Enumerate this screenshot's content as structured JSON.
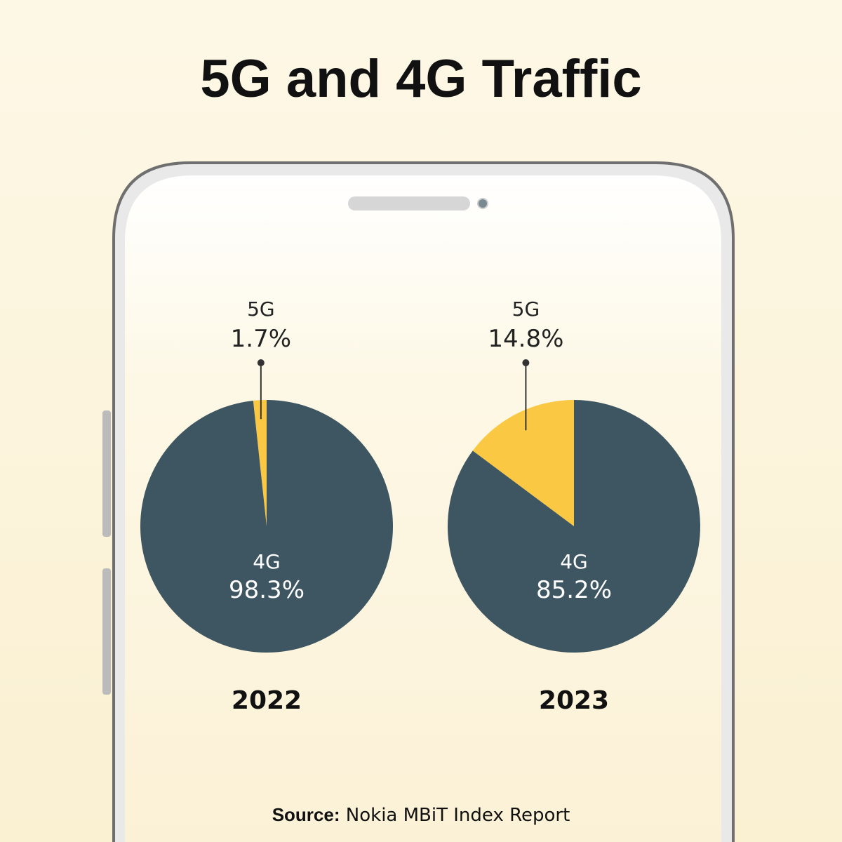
{
  "title": "5G and 4G Traffic",
  "source": {
    "label": "Source:",
    "text": "Nokia MBiT Index Report"
  },
  "chart_data": [
    {
      "type": "pie",
      "title": "2022",
      "categories": [
        "5G",
        "4G"
      ],
      "values": [
        1.7,
        98.3
      ],
      "value_labels": [
        "1.7%",
        "98.3%"
      ],
      "colors": [
        "#fbc843",
        "#3e5661"
      ]
    },
    {
      "type": "pie",
      "title": "2023",
      "categories": [
        "5G",
        "4G"
      ],
      "values": [
        14.8,
        85.2
      ],
      "value_labels": [
        "14.8%",
        "85.2%"
      ],
      "colors": [
        "#fbc843",
        "#3e5661"
      ]
    }
  ]
}
